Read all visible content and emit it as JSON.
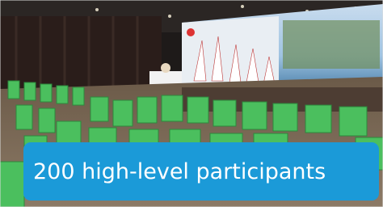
{
  "caption": "200 high-level participants"
}
